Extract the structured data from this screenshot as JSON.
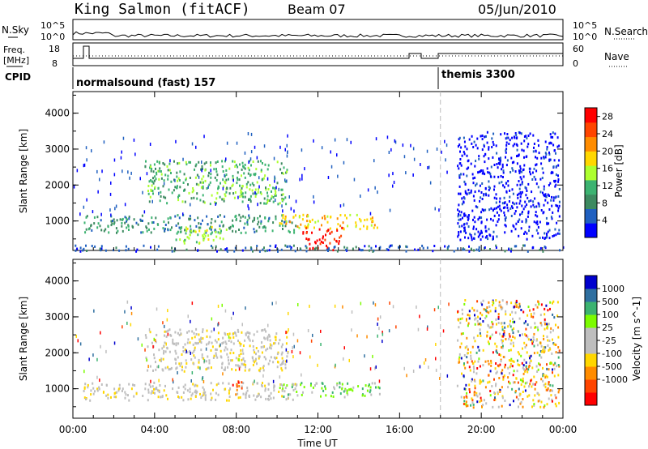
{
  "header": {
    "station": "King Salmon (fitACF)",
    "beam": "Beam 07",
    "date": "05/Jun/2010"
  },
  "noise_panel": {
    "left_label": "N.Sky",
    "right_label": "N.Search",
    "left_ticks": [
      "10^5",
      "10^0"
    ],
    "right_ticks": [
      "10^5",
      "10^0"
    ]
  },
  "freq_panel": {
    "left_label_1": "Freq.",
    "left_label_2": "[MHz]",
    "left_ticks": [
      "18",
      "8"
    ],
    "right_ticks": [
      "60",
      "0"
    ],
    "right_label": "Nave"
  },
  "cpid_panel": {
    "label": "CPID",
    "modes": [
      {
        "text": "normalsound (fast) 157",
        "start_hour": 0,
        "end_hour": 18
      },
      {
        "text": "themis 3300",
        "start_hour": 18,
        "end_hour": 24
      }
    ]
  },
  "colors": {
    "power_scale": [
      "#0000ff",
      "#2060c0",
      "#3d8a60",
      "#3cb371",
      "#adff2f",
      "#ffd700",
      "#ff8c00",
      "#ff4500",
      "#ff0000"
    ],
    "velocity_scale": [
      "#ff0000",
      "#ff4500",
      "#ff8c00",
      "#ffd700",
      "#bebebe",
      "#bebebe",
      "#7cfc00",
      "#3cb371",
      "#2f6fa0",
      "#0000cd"
    ],
    "ground_scatter": "#bebebe"
  },
  "chart_data": [
    {
      "type": "heatmap",
      "title": "",
      "xlabel": "Time UT",
      "ylabel": "Slant Range [km]",
      "x_ticks": [
        "00:00",
        "04:00",
        "08:00",
        "12:00",
        "16:00",
        "20:00",
        "00:00"
      ],
      "xlim_hours": [
        0,
        24
      ],
      "y_ticks": [
        1000,
        2000,
        3000,
        4000
      ],
      "ylim": [
        180,
        4600
      ],
      "colorbar": {
        "label": "Power [dB]",
        "ticks": [
          4,
          8,
          12,
          16,
          20,
          24,
          28
        ],
        "range": [
          0,
          30
        ]
      },
      "regions": [
        {
          "t0": 3.5,
          "t1": 10.5,
          "r0": 1500,
          "r1": 2700,
          "level": 3
        },
        {
          "t0": 0.5,
          "t1": 11.0,
          "r0": 700,
          "r1": 1200,
          "level": 2
        },
        {
          "t0": 10.0,
          "t1": 15.0,
          "r0": 800,
          "r1": 1200,
          "level": 5
        },
        {
          "t0": 11.2,
          "t1": 13.2,
          "r0": 450,
          "r1": 850,
          "level": 8
        },
        {
          "t0": 11.5,
          "t1": 13.0,
          "r0": 200,
          "r1": 450,
          "level": 8
        },
        {
          "t0": 5.0,
          "t1": 7.5,
          "r0": 400,
          "r1": 900,
          "level": 4
        },
        {
          "t0": 0.0,
          "t1": 24.0,
          "r0": 180,
          "r1": 350,
          "level": 1
        },
        {
          "t0": 18.8,
          "t1": 23.8,
          "r0": 500,
          "r1": 3500,
          "level": 0
        }
      ]
    },
    {
      "type": "heatmap",
      "title": "",
      "xlabel": "Time UT",
      "ylabel": "Slant Range [km]",
      "x_ticks": [
        "00:00",
        "04:00",
        "08:00",
        "12:00",
        "16:00",
        "20:00",
        "00:00"
      ],
      "xlim_hours": [
        0,
        24
      ],
      "y_ticks": [
        1000,
        2000,
        3000,
        4000
      ],
      "ylim": [
        180,
        4600
      ],
      "colorbar": {
        "label": "Velocity [m s^-1]",
        "ticks": [
          1000,
          500,
          100,
          25,
          -25,
          -100,
          -500,
          -1000
        ]
      },
      "regions": [
        {
          "t0": 3.5,
          "t1": 10.5,
          "r0": 1500,
          "r1": 2700,
          "level": 4
        },
        {
          "t0": 0.5,
          "t1": 11.0,
          "r0": 700,
          "r1": 1200,
          "level": 4
        },
        {
          "t0": 10.0,
          "t1": 15.0,
          "r0": 800,
          "r1": 1200,
          "level": 6
        },
        {
          "t0": 7.7,
          "t1": 8.3,
          "r0": 800,
          "r1": 1250,
          "level": 1
        },
        {
          "t0": 18.8,
          "t1": 23.8,
          "r0": 500,
          "r1": 3500,
          "level": 3
        }
      ]
    }
  ]
}
